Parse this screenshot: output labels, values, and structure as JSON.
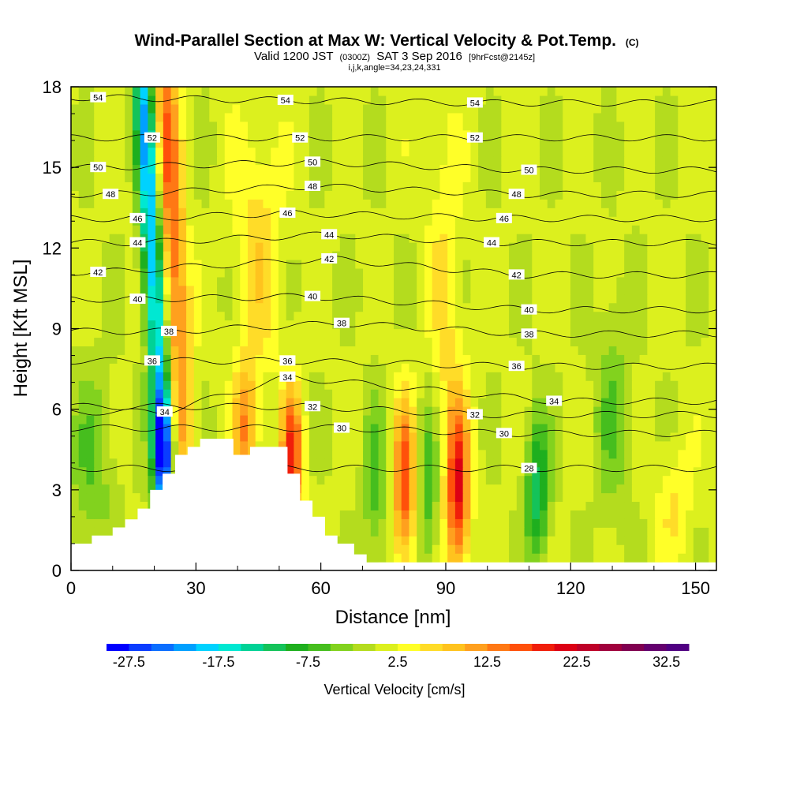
{
  "chart_data": {
    "type": "heatmap",
    "title": "Wind-Parallel Section at Max W: Vertical Velocity & Pot.Temp.",
    "title_mark": "(C)",
    "subtitle_prefix": "Valid 1200 JST",
    "subtitle_utc": "(0300Z)",
    "subtitle_date": "SAT 3 Sep 2016",
    "subtitle_fcst": "[9hrFcst@2145z]",
    "subtitle2": "i,j,k,angle=34,23,24,331",
    "xlabel": "Distance [nm]",
    "ylabel": "Height [Kft MSL]",
    "xlim": [
      0,
      155
    ],
    "ylim": [
      0,
      18
    ],
    "xticks": [
      0,
      30,
      60,
      90,
      120,
      150
    ],
    "yticks": [
      0,
      3,
      6,
      9,
      12,
      15,
      18
    ],
    "colorbar": {
      "title": "Vertical Velocity [cm/s]",
      "min": -30,
      "step": 2.5,
      "tick_labels": [
        "-27.5",
        "-17.5",
        "-7.5",
        "2.5",
        "12.5",
        "22.5",
        "32.5"
      ],
      "colors": [
        "#0000ff",
        "#0a3cff",
        "#0a6eff",
        "#00a0ff",
        "#00d2ff",
        "#00e8d2",
        "#00d296",
        "#14c35a",
        "#1eaf1e",
        "#46be1e",
        "#82d21e",
        "#b4dc1e",
        "#dcf01e",
        "#ffff28",
        "#ffdc28",
        "#ffc31e",
        "#ffa01e",
        "#ff7814",
        "#ff500a",
        "#f01e0a",
        "#dc0014",
        "#be0028",
        "#a0003c",
        "#800050",
        "#64006e",
        "#500082"
      ]
    },
    "terrain_profile": [
      [
        0,
        1.0
      ],
      [
        5,
        1.0
      ],
      [
        5,
        1.3
      ],
      [
        10,
        1.3
      ],
      [
        10,
        1.6
      ],
      [
        13,
        1.6
      ],
      [
        13,
        1.9
      ],
      [
        16,
        1.9
      ],
      [
        16,
        2.3
      ],
      [
        19,
        2.3
      ],
      [
        19,
        3.0
      ],
      [
        22,
        3.0
      ],
      [
        22,
        3.6
      ],
      [
        25,
        3.6
      ],
      [
        25,
        4.3
      ],
      [
        28,
        4.3
      ],
      [
        28,
        4.6
      ],
      [
        31,
        4.6
      ],
      [
        31,
        4.9
      ],
      [
        39,
        4.9
      ],
      [
        39,
        4.3
      ],
      [
        43,
        4.3
      ],
      [
        43,
        4.6
      ],
      [
        52,
        4.6
      ],
      [
        52,
        3.6
      ],
      [
        55,
        3.6
      ],
      [
        55,
        2.6
      ],
      [
        58,
        2.6
      ],
      [
        58,
        2.0
      ],
      [
        61,
        2.0
      ],
      [
        61,
        1.3
      ],
      [
        64,
        1.3
      ],
      [
        64,
        1.0
      ],
      [
        68,
        1.0
      ],
      [
        68,
        0.6
      ],
      [
        71,
        0.6
      ],
      [
        71,
        0.3
      ],
      [
        155,
        0.3
      ]
    ],
    "vertical_velocity_features": [
      {
        "x": 24,
        "y": 13.5,
        "sx": 2.2,
        "sy": 9.0,
        "slope": -0.35,
        "value": 15
      },
      {
        "x": 19,
        "y": 13.5,
        "sx": 1.8,
        "sy": 9.0,
        "slope": -0.35,
        "value": -22
      },
      {
        "x": 22,
        "y": 4.5,
        "sx": 1.6,
        "sy": 1.6,
        "slope": 0,
        "value": -22
      },
      {
        "x": 42,
        "y": 5.2,
        "sx": 2.0,
        "sy": 1.8,
        "slope": 0,
        "value": 12
      },
      {
        "x": 53,
        "y": 4.2,
        "sx": 1.8,
        "sy": 1.8,
        "slope": 0,
        "value": 18
      },
      {
        "x": 80,
        "y": 3.2,
        "sx": 1.9,
        "sy": 2.2,
        "slope": 0,
        "value": 16
      },
      {
        "x": 93,
        "y": 3.0,
        "sx": 1.9,
        "sy": 2.2,
        "slope": 0,
        "value": 18
      },
      {
        "x": 86,
        "y": 3.0,
        "sx": 1.8,
        "sy": 2.4,
        "slope": 0,
        "value": -8
      },
      {
        "x": 73,
        "y": 3.0,
        "sx": 2.0,
        "sy": 2.4,
        "slope": 0,
        "value": -6
      },
      {
        "x": 112,
        "y": 3.0,
        "sx": 2.0,
        "sy": 2.0,
        "slope": 0,
        "value": -12
      },
      {
        "x": 45,
        "y": 12.0,
        "sx": 4.0,
        "sy": 3.5,
        "slope": -0.1,
        "value": 6
      },
      {
        "x": 90,
        "y": 9.0,
        "sx": 3.0,
        "sy": 6.0,
        "slope": -0.1,
        "value": 5
      },
      {
        "x": 130,
        "y": 6.0,
        "sx": 3.0,
        "sy": 3.0,
        "slope": 0,
        "value": -5
      },
      {
        "x": 5,
        "y": 4.0,
        "sx": 4.0,
        "sy": 2.5,
        "slope": 0,
        "value": -5
      },
      {
        "x": 145,
        "y": 2.5,
        "sx": 3.0,
        "sy": 1.5,
        "slope": 0,
        "value": 5
      }
    ],
    "pot_temp_contours": {
      "levels": [
        28,
        30,
        32,
        34,
        36,
        38,
        40,
        42,
        44,
        46,
        48,
        50,
        52,
        54
      ],
      "labels": [
        {
          "text": "54",
          "x": 6.5,
          "y": 17.6
        },
        {
          "text": "54",
          "x": 51.5,
          "y": 17.5
        },
        {
          "text": "54",
          "x": 97,
          "y": 17.4
        },
        {
          "text": "52",
          "x": 19.5,
          "y": 16.1
        },
        {
          "text": "52",
          "x": 55,
          "y": 16.1
        },
        {
          "text": "52",
          "x": 97,
          "y": 16.1
        },
        {
          "text": "50",
          "x": 6.5,
          "y": 15.0
        },
        {
          "text": "50",
          "x": 58,
          "y": 15.2
        },
        {
          "text": "50",
          "x": 110,
          "y": 14.9
        },
        {
          "text": "48",
          "x": 9.5,
          "y": 14.0
        },
        {
          "text": "48",
          "x": 58,
          "y": 14.3
        },
        {
          "text": "48",
          "x": 107,
          "y": 14.0
        },
        {
          "text": "46",
          "x": 16,
          "y": 13.1
        },
        {
          "text": "46",
          "x": 52,
          "y": 13.3
        },
        {
          "text": "46",
          "x": 104,
          "y": 13.1
        },
        {
          "text": "44",
          "x": 16,
          "y": 12.2
        },
        {
          "text": "44",
          "x": 62,
          "y": 12.5
        },
        {
          "text": "44",
          "x": 101,
          "y": 12.2
        },
        {
          "text": "42",
          "x": 6.5,
          "y": 11.1
        },
        {
          "text": "42",
          "x": 62,
          "y": 11.6
        },
        {
          "text": "42",
          "x": 107,
          "y": 11.0
        },
        {
          "text": "40",
          "x": 16,
          "y": 10.1
        },
        {
          "text": "40",
          "x": 58,
          "y": 10.2
        },
        {
          "text": "40",
          "x": 110,
          "y": 9.7
        },
        {
          "text": "38",
          "x": 23.5,
          "y": 8.9
        },
        {
          "text": "38",
          "x": 65,
          "y": 9.2
        },
        {
          "text": "38",
          "x": 110,
          "y": 8.8
        },
        {
          "text": "36",
          "x": 19.5,
          "y": 7.8
        },
        {
          "text": "36",
          "x": 52,
          "y": 7.8
        },
        {
          "text": "36",
          "x": 107,
          "y": 7.6
        },
        {
          "text": "34",
          "x": 22.5,
          "y": 5.9
        },
        {
          "text": "34",
          "x": 52,
          "y": 7.2
        },
        {
          "text": "34",
          "x": 116,
          "y": 6.3
        },
        {
          "text": "32",
          "x": 58,
          "y": 6.1
        },
        {
          "text": "32",
          "x": 97,
          "y": 5.8
        },
        {
          "text": "30",
          "x": 65,
          "y": 5.3
        },
        {
          "text": "30",
          "x": 104,
          "y": 5.1
        },
        {
          "text": "28",
          "x": 110,
          "y": 3.8
        }
      ]
    }
  }
}
